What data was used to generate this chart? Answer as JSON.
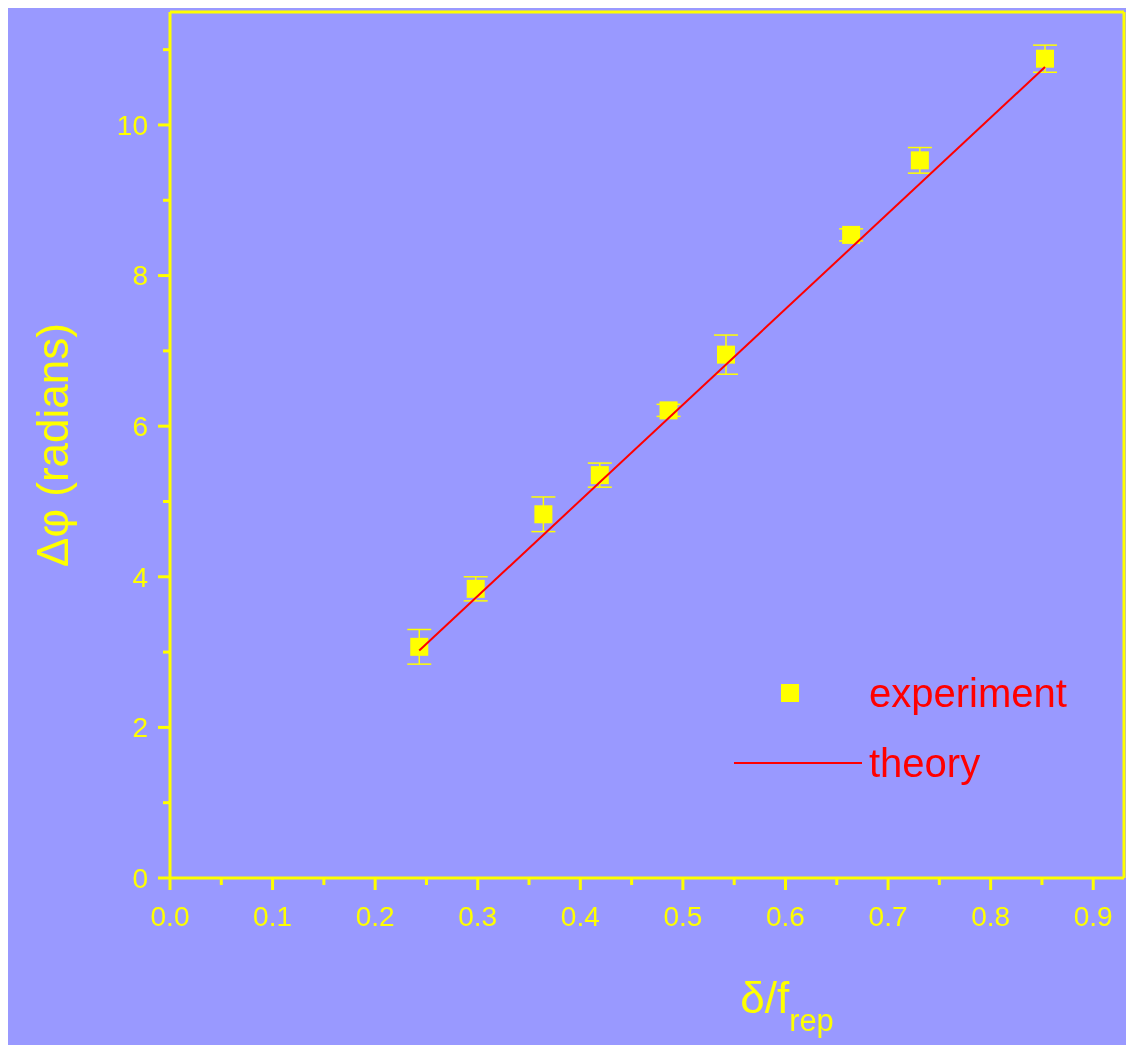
{
  "chart_data": {
    "type": "scatter",
    "xlabel": "δ/f$_{rep}$",
    "ylabel": "Δφ (radians)",
    "xlim": [
      0,
      0.93
    ],
    "ylim": [
      0,
      11.5
    ],
    "xticks": [
      {
        "value": 0,
        "label": "0.0"
      },
      {
        "value": 0.05,
        "label": null
      },
      {
        "value": 0.1,
        "label": "0.1"
      },
      {
        "value": 0.15,
        "label": null
      },
      {
        "value": 0.2,
        "label": "0.2"
      },
      {
        "value": 0.25,
        "label": null
      },
      {
        "value": 0.3,
        "label": "0.3"
      },
      {
        "value": 0.35,
        "label": null
      },
      {
        "value": 0.4,
        "label": "0.4"
      },
      {
        "value": 0.45,
        "label": null
      },
      {
        "value": 0.5,
        "label": "0.5"
      },
      {
        "value": 0.55,
        "label": null
      },
      {
        "value": 0.6,
        "label": "0.6"
      },
      {
        "value": 0.65,
        "label": null
      },
      {
        "value": 0.7,
        "label": "0.7"
      },
      {
        "value": 0.75,
        "label": null
      },
      {
        "value": 0.8,
        "label": "0.8"
      },
      {
        "value": 0.85,
        "label": null
      },
      {
        "value": 0.9,
        "label": "0.9"
      }
    ],
    "yticks": [
      0,
      {
        "value": 1,
        "label": null
      },
      2,
      {
        "value": 3,
        "label": null
      },
      4,
      {
        "value": 5,
        "label": null
      },
      6,
      {
        "value": 7,
        "label": null
      },
      8,
      {
        "value": 9,
        "label": null
      },
      10,
      {
        "value": 11,
        "label": null
      }
    ],
    "grid": false,
    "legend": "bottom right",
    "series": [
      {
        "name": "experiment",
        "color": "#ffff00",
        "marker": "square",
        "x": [
          0.243,
          0.298,
          0.364,
          0.419,
          0.486,
          0.542,
          0.664,
          0.731,
          0.853
        ],
        "values": [
          3.07,
          3.84,
          4.83,
          5.35,
          6.21,
          6.95,
          8.54,
          9.53,
          10.88
        ],
        "errors": [
          0.23,
          0.16,
          0.23,
          0.16,
          0.08,
          0.26,
          0.08,
          0.17,
          0.18
        ]
      },
      {
        "name": "theory",
        "type": "line",
        "color": "#ff0000",
        "line_style": "solid",
        "x": [
          0.243,
          0.853
        ],
        "values": [
          3.02,
          10.77
        ]
      }
    ]
  }
}
